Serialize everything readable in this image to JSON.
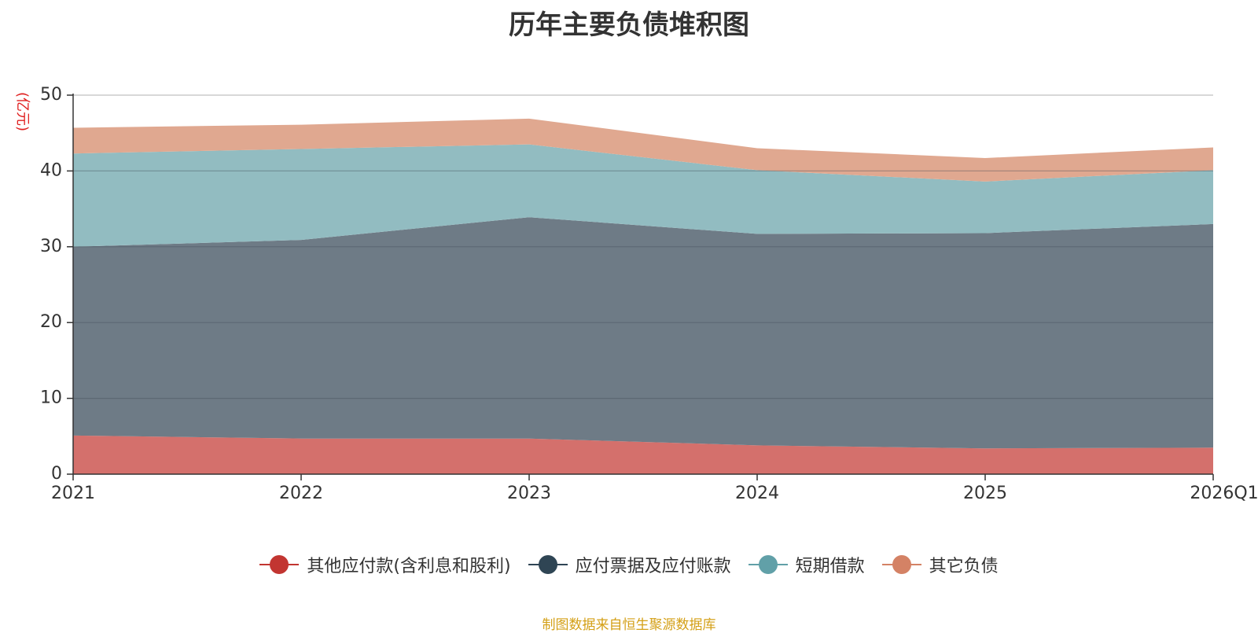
{
  "chart_data": {
    "type": "area",
    "stacked": true,
    "title": "历年主要负债堆积图",
    "ylabel": "(亿元)",
    "xlabel": "",
    "ylim": [
      0,
      50
    ],
    "yticks": [
      0,
      10,
      20,
      30,
      40,
      50
    ],
    "categories": [
      "2021",
      "2022",
      "2023",
      "2024",
      "2025",
      "2026Q1"
    ],
    "series": [
      {
        "name": "其他应付款(含利息和股利)",
        "color": "#c23531",
        "fill": "#d4706c",
        "values": [
          5.1,
          4.7,
          4.7,
          3.8,
          3.4,
          3.5
        ]
      },
      {
        "name": "应付票据及应付账款",
        "color": "#2f4554",
        "fill": "#6e7b86",
        "values": [
          24.9,
          26.2,
          29.2,
          27.9,
          28.4,
          29.5
        ]
      },
      {
        "name": "短期借款",
        "color": "#61a0a8",
        "fill": "#92bcc1",
        "values": [
          12.3,
          12.0,
          9.6,
          8.4,
          6.8,
          7.1
        ]
      },
      {
        "name": "其它负债",
        "color": "#d48265",
        "fill": "#e0a890",
        "values": [
          3.4,
          3.2,
          3.4,
          2.9,
          3.1,
          3.0
        ]
      }
    ],
    "legend_position": "bottom",
    "grid": true
  },
  "source": "制图数据来自恒生聚源数据库"
}
